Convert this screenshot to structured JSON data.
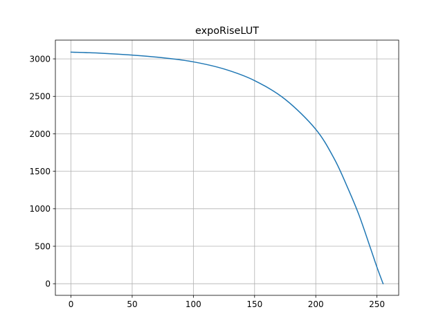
{
  "chart_data": {
    "type": "line",
    "title": "expoRiseLUT",
    "xlabel": "",
    "ylabel": "",
    "xlim": [
      -12.75,
      267.75
    ],
    "ylim": [
      -155,
      3250
    ],
    "x_ticks": [
      0,
      50,
      100,
      150,
      200,
      250
    ],
    "y_ticks": [
      0,
      500,
      1000,
      1500,
      2000,
      2500,
      3000
    ],
    "x_tick_labels": [
      "0",
      "50",
      "100",
      "150",
      "200",
      "250"
    ],
    "y_tick_labels": [
      "0",
      "500",
      "1000",
      "1500",
      "2000",
      "2500",
      "3000"
    ],
    "grid": true,
    "legend": "none",
    "series": [
      {
        "color": "#1f77b4",
        "x": [
          0,
          25,
          50,
          75,
          100,
          125,
          150,
          175,
          200,
          215,
          225,
          235,
          245,
          250,
          255
        ],
        "y": [
          3090,
          3075,
          3050,
          3015,
          2960,
          2865,
          2710,
          2460,
          2060,
          1670,
          1320,
          930,
          460,
          220,
          0
        ]
      }
    ]
  }
}
